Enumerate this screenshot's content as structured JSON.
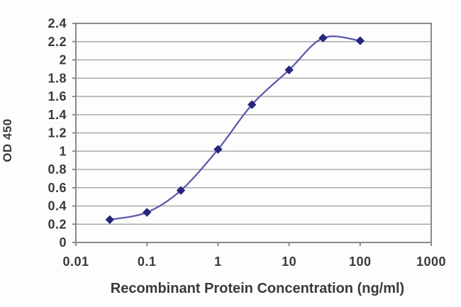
{
  "chart_data": {
    "type": "line",
    "title": "",
    "xlabel": "Recombinant Protein Concentration (ng/ml)",
    "ylabel": "OD 450",
    "x_scale": "log",
    "x": [
      0.03,
      0.1,
      0.3,
      1,
      3,
      10,
      30,
      100
    ],
    "y": [
      0.25,
      0.33,
      0.57,
      1.02,
      1.51,
      1.89,
      2.24,
      2.21
    ],
    "x_ticks": [
      0.01,
      0.1,
      1,
      10,
      100,
      1000
    ],
    "x_tick_labels": [
      "0.01",
      "0.1",
      "1",
      "10",
      "100",
      "1000"
    ],
    "y_ticks": [
      0,
      0.2,
      0.4,
      0.6,
      0.8,
      1,
      1.2,
      1.4,
      1.6,
      1.8,
      2,
      2.2,
      2.4
    ],
    "y_tick_labels": [
      "0",
      "0.2",
      "0.4",
      "0.6",
      "0.8",
      "1",
      "1.2",
      "1.4",
      "1.6",
      "1.8",
      "2",
      "2.2",
      "2.4"
    ],
    "xlim": [
      0.01,
      1000
    ],
    "ylim": [
      0,
      2.4
    ],
    "grid": "horizontal",
    "legend": "none",
    "marker_shape": "diamond",
    "colors": {
      "line": "#5b5bab",
      "marker": "#26267d",
      "grid": "#a9a9a9",
      "axis": "#8a8a8a",
      "text": "#3a3a3a",
      "background": "#ffffff"
    }
  }
}
